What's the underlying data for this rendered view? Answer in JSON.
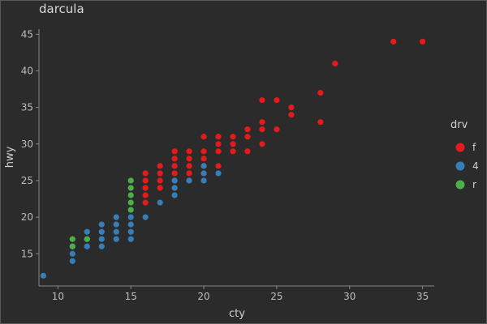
{
  "chart_data": {
    "type": "scatter",
    "title": "darcula",
    "xlabel": "cty",
    "ylabel": "hwy",
    "xlim": [
      8.7,
      35.8
    ],
    "ylim": [
      10.6,
      45.7
    ],
    "xticks": [
      10,
      15,
      20,
      25,
      30,
      35
    ],
    "yticks": [
      15,
      20,
      25,
      30,
      35,
      40,
      45
    ],
    "grid": false,
    "legend": {
      "title": "drv",
      "position": "right"
    },
    "series": [
      {
        "name": "f",
        "color": "#e41a1c",
        "points": [
          [
            16,
            22
          ],
          [
            16,
            23
          ],
          [
            16,
            24
          ],
          [
            16,
            25
          ],
          [
            16,
            26
          ],
          [
            17,
            24
          ],
          [
            17,
            25
          ],
          [
            17,
            26
          ],
          [
            17,
            27
          ],
          [
            18,
            25
          ],
          [
            18,
            26
          ],
          [
            18,
            27
          ],
          [
            18,
            28
          ],
          [
            18,
            29
          ],
          [
            19,
            25
          ],
          [
            19,
            26
          ],
          [
            19,
            27
          ],
          [
            19,
            28
          ],
          [
            19,
            29
          ],
          [
            20,
            26
          ],
          [
            20,
            27
          ],
          [
            20,
            28
          ],
          [
            20,
            29
          ],
          [
            20,
            31
          ],
          [
            21,
            27
          ],
          [
            21,
            29
          ],
          [
            21,
            30
          ],
          [
            21,
            31
          ],
          [
            22,
            29
          ],
          [
            22,
            30
          ],
          [
            22,
            31
          ],
          [
            23,
            29
          ],
          [
            23,
            31
          ],
          [
            23,
            32
          ],
          [
            24,
            30
          ],
          [
            24,
            32
          ],
          [
            24,
            33
          ],
          [
            24,
            36
          ],
          [
            25,
            32
          ],
          [
            25,
            36
          ],
          [
            26,
            34
          ],
          [
            26,
            35
          ],
          [
            28,
            33
          ],
          [
            28,
            37
          ],
          [
            29,
            41
          ],
          [
            33,
            44
          ],
          [
            35,
            44
          ]
        ]
      },
      {
        "name": "4",
        "color": "#377eb8",
        "points": [
          [
            9,
            12
          ],
          [
            11,
            14
          ],
          [
            11,
            15
          ],
          [
            11,
            16
          ],
          [
            12,
            16
          ],
          [
            12,
            17
          ],
          [
            12,
            18
          ],
          [
            13,
            16
          ],
          [
            13,
            17
          ],
          [
            13,
            18
          ],
          [
            13,
            19
          ],
          [
            14,
            17
          ],
          [
            14,
            18
          ],
          [
            14,
            19
          ],
          [
            14,
            20
          ],
          [
            15,
            17
          ],
          [
            15,
            18
          ],
          [
            15,
            19
          ],
          [
            15,
            20
          ],
          [
            16,
            20
          ],
          [
            17,
            22
          ],
          [
            18,
            23
          ],
          [
            18,
            24
          ],
          [
            18,
            25
          ],
          [
            19,
            25
          ],
          [
            20,
            25
          ],
          [
            20,
            26
          ],
          [
            20,
            27
          ],
          [
            21,
            26
          ]
        ]
      },
      {
        "name": "r",
        "color": "#4daf4a",
        "points": [
          [
            11,
            16
          ],
          [
            11,
            17
          ],
          [
            12,
            17
          ],
          [
            15,
            21
          ],
          [
            15,
            22
          ],
          [
            15,
            23
          ],
          [
            15,
            24
          ],
          [
            15,
            25
          ]
        ]
      }
    ]
  }
}
